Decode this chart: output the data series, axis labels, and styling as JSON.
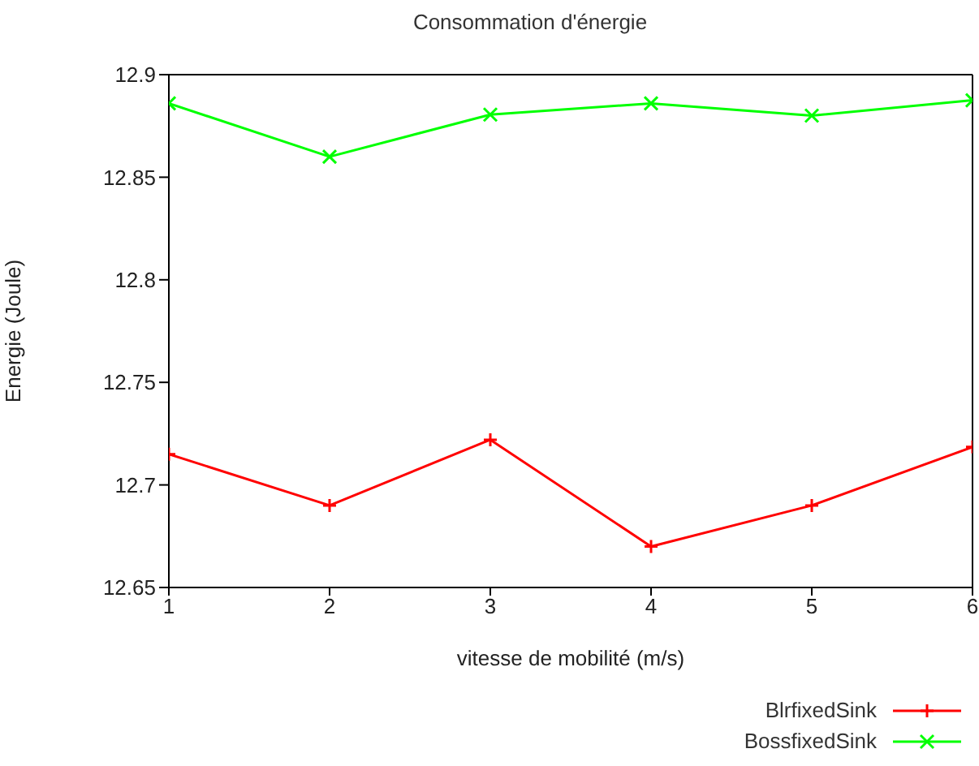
{
  "chart_data": {
    "type": "line",
    "title": "Consommation d'énergie",
    "xlabel": "vitesse de mobilité (m/s)",
    "ylabel": "Energie (Joule)",
    "x": [
      1,
      2,
      3,
      4,
      5,
      6
    ],
    "xlim": [
      1,
      6
    ],
    "xticks": [
      1,
      2,
      3,
      4,
      5,
      6
    ],
    "ylim": [
      12.65,
      12.9
    ],
    "yticks": [
      12.65,
      12.7,
      12.75,
      12.8,
      12.85,
      12.9
    ],
    "series": [
      {
        "name": "BlrfixedSink",
        "color": "#ff0000",
        "marker": "cross",
        "values": [
          12.715,
          12.69,
          12.722,
          12.67,
          12.69,
          12.7185
        ]
      },
      {
        "name": "BossfixedSink",
        "color": "#00ff00",
        "marker": "x",
        "values": [
          12.886,
          12.86,
          12.8805,
          12.886,
          12.88,
          12.8875
        ]
      }
    ],
    "grid": false,
    "legend": "bottom right",
    "line_style": "solid"
  }
}
